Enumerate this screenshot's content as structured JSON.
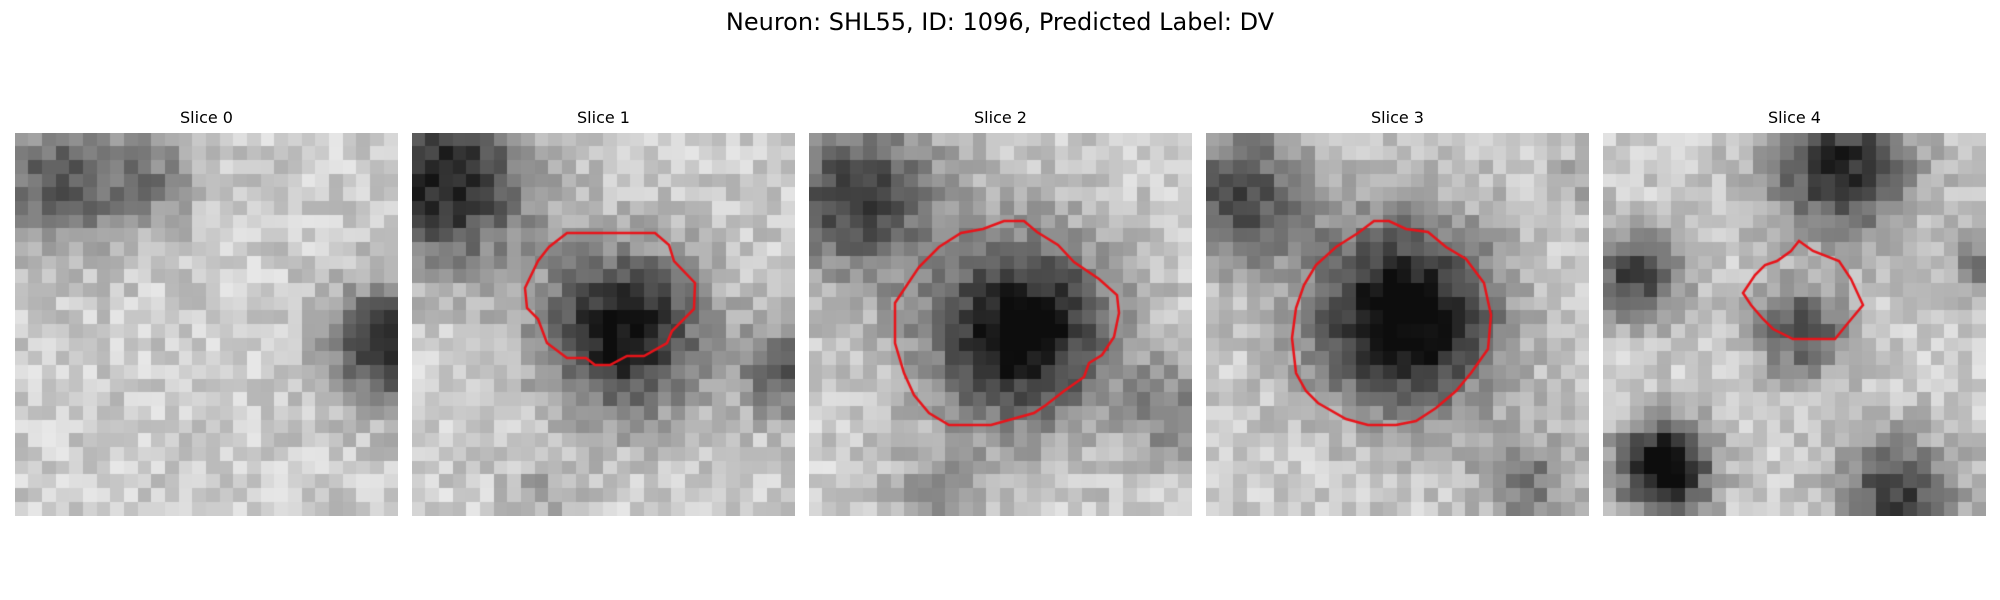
{
  "figure": {
    "title": "Neuron: SHL55, ID: 1096, Predicted Label: DV"
  },
  "panels": [
    {
      "title": "Slice 0",
      "roi": false
    },
    {
      "title": "Slice 1",
      "roi": true
    },
    {
      "title": "Slice 2",
      "roi": true
    },
    {
      "title": "Slice 3",
      "roi": true
    },
    {
      "title": "Slice 4",
      "roi": true
    }
  ],
  "colors": {
    "roi_outline": "#e8141a"
  }
}
